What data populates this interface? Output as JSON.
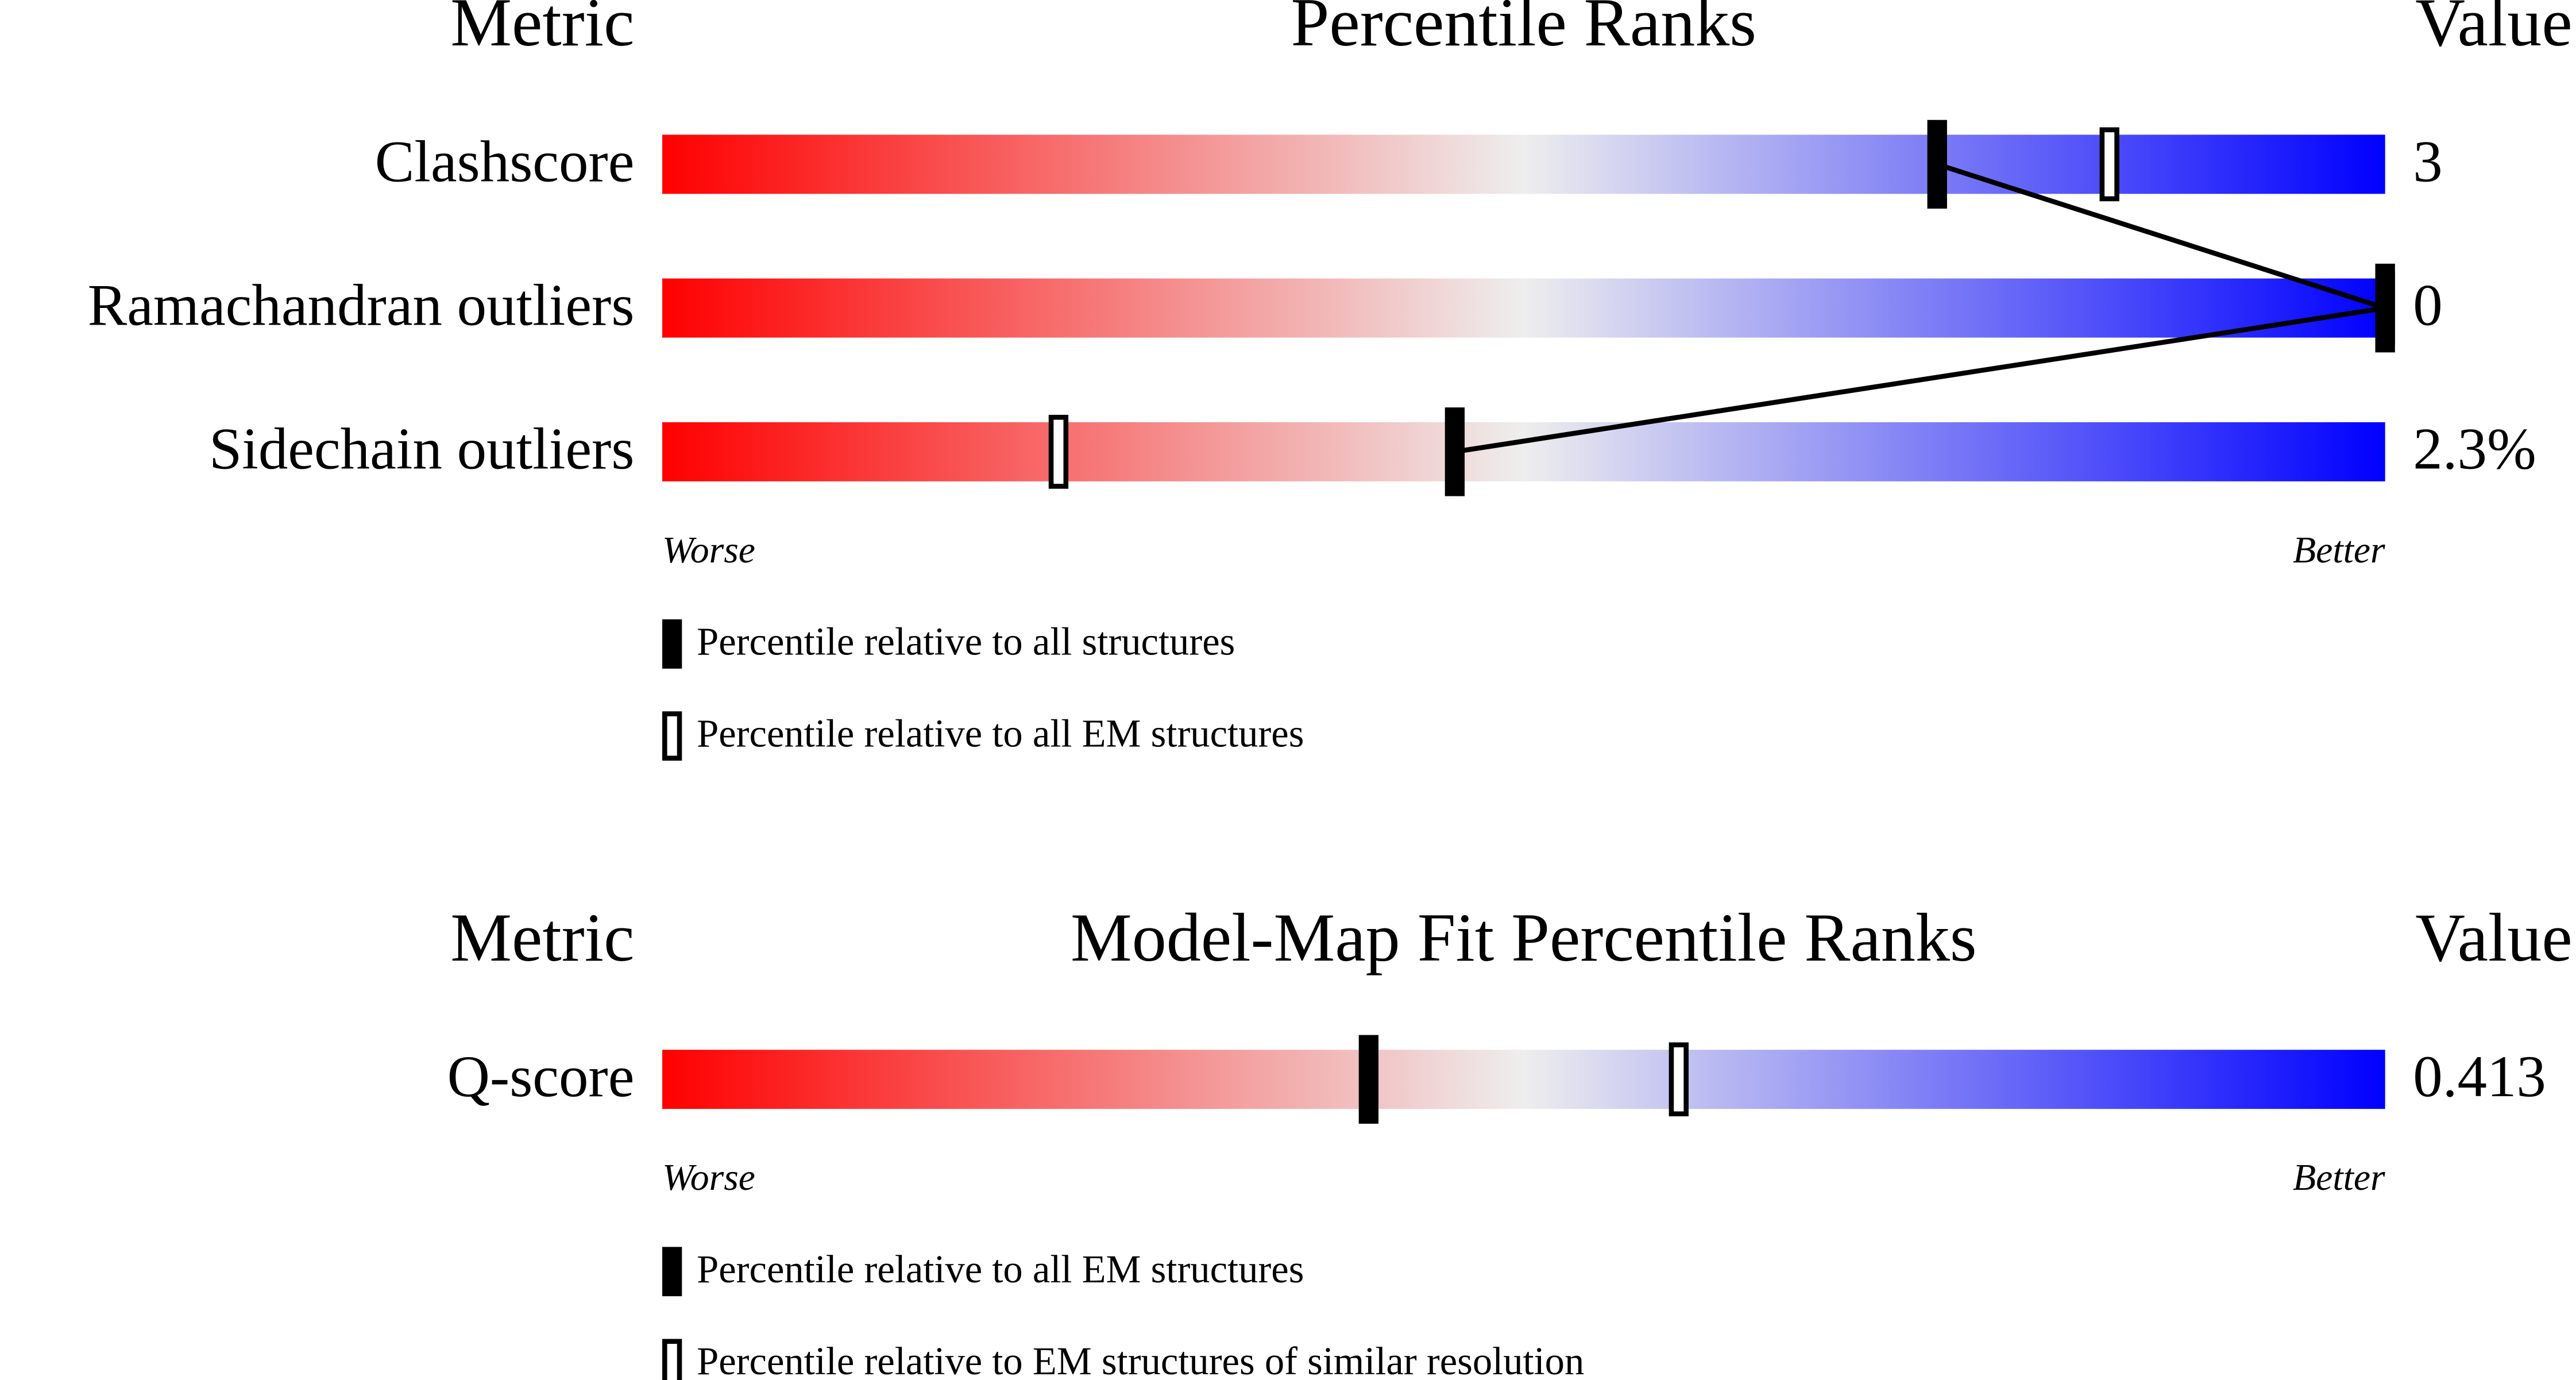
{
  "chart_data": [
    {
      "type": "percentile-slider",
      "headers": {
        "metric": "Metric",
        "title": "Percentile Ranks",
        "value": "Value"
      },
      "categories": [
        "Clashscore",
        "Ramachandran outliers",
        "Sidechain outliers"
      ],
      "values": [
        3,
        0,
        2.3
      ],
      "value_labels": [
        "3",
        "0",
        "2.3%"
      ],
      "series": [
        {
          "name": "Percentile relative to all structures",
          "style": "filled",
          "color": "#000000",
          "values": [
            74,
            100,
            46
          ]
        },
        {
          "name": "Percentile relative to all EM structures",
          "style": "open",
          "color": "#000000",
          "values": [
            84,
            100,
            23
          ]
        }
      ],
      "xlim": [
        0,
        100
      ],
      "axis_labels": {
        "low": "Worse",
        "high": "Better"
      },
      "gradient": [
        "#ff0000",
        "#eeeeee",
        "#0000ff"
      ]
    },
    {
      "type": "percentile-slider",
      "headers": {
        "metric": "Metric",
        "title": "Model-Map Fit Percentile Ranks",
        "value": "Value"
      },
      "categories": [
        "Q-score"
      ],
      "values": [
        0.413
      ],
      "value_labels": [
        "0.413"
      ],
      "series": [
        {
          "name": "Percentile relative to all EM structures",
          "style": "filled",
          "color": "#000000",
          "values": [
            41
          ]
        },
        {
          "name": "Percentile relative to EM structures of similar resolution",
          "style": "open",
          "color": "#000000",
          "values": [
            59
          ]
        }
      ],
      "xlim": [
        0,
        100
      ],
      "axis_labels": {
        "low": "Worse",
        "high": "Better"
      },
      "gradient": [
        "#ff0000",
        "#eeeeee",
        "#0000ff"
      ]
    }
  ]
}
